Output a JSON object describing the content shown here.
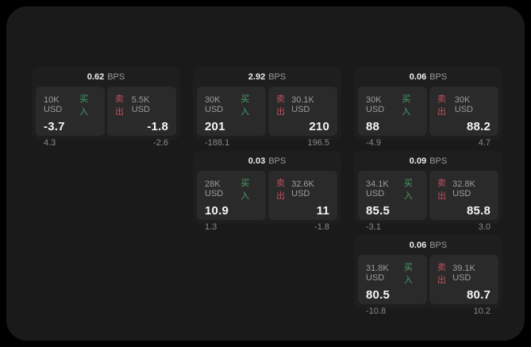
{
  "labels": {
    "unit": "BPS",
    "buy": "买入",
    "sell": "卖出"
  },
  "colors": {
    "outer_background": "#000000",
    "frame_background": "#1a1a1a",
    "card_background": "#1e1e1e",
    "panel_background": "#2a2a2a",
    "buy_accent": "#46a064",
    "sell_accent": "#c0505f",
    "primary_text": "#f4f4f4",
    "muted_text": "#9d9d9d"
  },
  "cards": [
    {
      "bps": "0.62",
      "buy": {
        "size": "10K USD",
        "value": "-3.7",
        "delta": "4.3"
      },
      "sell": {
        "size": "5.5K USD",
        "value": "-1.8",
        "delta": "-2.6"
      }
    },
    {
      "bps": "2.92",
      "buy": {
        "size": "30K USD",
        "value": "201",
        "delta": "-188.1"
      },
      "sell": {
        "size": "30.1K USD",
        "value": "210",
        "delta": "196.5"
      }
    },
    {
      "bps": "0.06",
      "buy": {
        "size": "30K USD",
        "value": "88",
        "delta": "-4.9"
      },
      "sell": {
        "size": "30K USD",
        "value": "88.2",
        "delta": "4.7"
      }
    },
    {
      "bps": "0.03",
      "buy": {
        "size": "28K USD",
        "value": "10.9",
        "delta": "1.3"
      },
      "sell": {
        "size": "32.6K USD",
        "value": "11",
        "delta": "-1.8"
      }
    },
    {
      "bps": "0.09",
      "buy": {
        "size": "34.1K USD",
        "value": "85.5",
        "delta": "-3.1"
      },
      "sell": {
        "size": "32.8K USD",
        "value": "85.8",
        "delta": "3.0"
      }
    },
    {
      "bps": "0.06",
      "buy": {
        "size": "31.8K USD",
        "value": "80.5",
        "delta": "-10.8"
      },
      "sell": {
        "size": "39.1K USD",
        "value": "80.7",
        "delta": "10.2"
      }
    }
  ]
}
